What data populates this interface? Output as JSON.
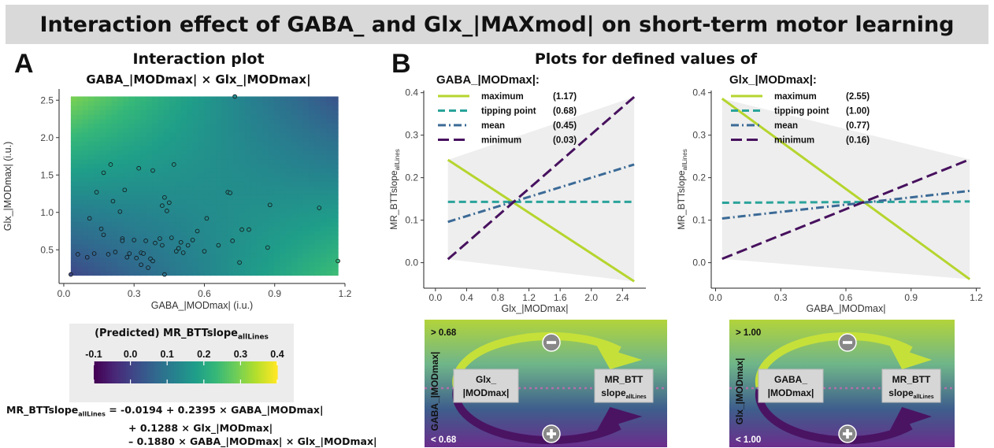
{
  "banner_title": "Interaction effect of GABA_ and Glx_|MAXmod| on short-term motor learning",
  "panel_a": {
    "letter": "A",
    "title": "Interaction plot",
    "subtitle": "GABA_|MODmax| × Glx_|MODmax|",
    "colorbar_title_main": "(Predicted) MR_BTTslope",
    "colorbar_title_sub": "allLines",
    "colorbar_ticks": [
      "-0.1",
      "0.0",
      "0.1",
      "0.2",
      "0.3",
      "0.4"
    ],
    "equation": {
      "lhs_main": "MR_BTTslope",
      "lhs_sub": "allLines",
      "line1": "= -0.0194 + 0.2395 × GABA_|MODmax|",
      "line2": "+ 0.1288 × Glx_|MODmax|",
      "line3": "– 0.1880 × GABA_|MODmax| × Glx_|MODmax|"
    }
  },
  "panel_b": {
    "letter": "B",
    "title": "Plots for defined values of",
    "ylabel_main": "MR_BTTslope",
    "ylabel_sub": "allLines",
    "labels": [
      "maximum",
      "tipping point",
      "mean",
      "minimum"
    ],
    "left_legend_title": "GABA_|MODmax|:",
    "left_legend_values": [
      "(1.17)",
      "(0.68)",
      "(0.45)",
      "(0.03)"
    ],
    "right_legend_title": "Glx_|MODmax|:",
    "right_legend_values": [
      "(2.55)",
      "(1.00)",
      "(0.77)",
      "(0.16)"
    ]
  },
  "diagrams": [
    {
      "axis_label": "GABA_|MODmax|",
      "top_label": "> 0.68",
      "bottom_label": "< 0.68",
      "left_box": [
        "Glx_",
        "|MODmax|"
      ],
      "right_box_main": "MR_BTT",
      "right_box_sub_main": "slope",
      "right_box_sub": "allLines"
    },
    {
      "axis_label": "Glx_|MODmax|",
      "top_label": "> 1.00",
      "bottom_label": "< 1.00",
      "left_box": [
        "GABA_",
        "|MODmax|"
      ],
      "right_box_main": "MR_BTT",
      "right_box_sub_main": "slope",
      "right_box_sub": "allLines"
    }
  ],
  "colors": {
    "maximum": "#b5d52e",
    "tipping_point": "#2aa39a",
    "mean": "#3b6a96",
    "minimum": "#47115e"
  },
  "chart_data": [
    {
      "type": "heatmap",
      "title": "Interaction plot",
      "subtitle": "GABA_|MODmax| × Glx_|MODmax|",
      "xlabel": "GABA_|MODmax| (i.u.)",
      "ylabel": "Glx_|MODmax| (i.u.)",
      "xlim": [
        -0.02,
        1.2
      ],
      "ylim": [
        0.05,
        2.65
      ],
      "xticks": [
        0.0,
        0.3,
        0.6,
        0.9,
        1.2
      ],
      "xtick_labels": [
        "0.0",
        "0.3",
        "0.6",
        "0.9",
        "1.2"
      ],
      "yticks": [
        0.5,
        1.0,
        1.5,
        2.0,
        2.5
      ],
      "ytick_labels": [
        "0.5",
        "1.0",
        "1.5",
        "2.0",
        "2.5"
      ],
      "fill_x": [
        0.03,
        1.17
      ],
      "fill_y": [
        0.16,
        2.55
      ],
      "colorscale": "viridis",
      "color_range": [
        -0.1,
        0.4
      ],
      "model": {
        "intercept": -0.0194,
        "gaba": 0.2395,
        "glx": 0.1288,
        "interaction": -0.188
      },
      "points": [
        {
          "x": 0.03,
          "y": 0.17
        },
        {
          "x": 0.06,
          "y": 0.44
        },
        {
          "x": 0.1,
          "y": 0.4
        },
        {
          "x": 0.11,
          "y": 0.92
        },
        {
          "x": 0.13,
          "y": 0.45
        },
        {
          "x": 0.14,
          "y": 1.27
        },
        {
          "x": 0.16,
          "y": 0.78
        },
        {
          "x": 0.17,
          "y": 0.7
        },
        {
          "x": 0.17,
          "y": 1.53
        },
        {
          "x": 0.19,
          "y": 0.44
        },
        {
          "x": 0.2,
          "y": 1.64
        },
        {
          "x": 0.21,
          "y": 1.15
        },
        {
          "x": 0.22,
          "y": 0.47
        },
        {
          "x": 0.24,
          "y": 1.01
        },
        {
          "x": 0.25,
          "y": 0.65
        },
        {
          "x": 0.25,
          "y": 0.62
        },
        {
          "x": 0.26,
          "y": 1.3
        },
        {
          "x": 0.27,
          "y": 0.4
        },
        {
          "x": 0.28,
          "y": 0.45
        },
        {
          "x": 0.3,
          "y": 0.63
        },
        {
          "x": 0.31,
          "y": 0.39
        },
        {
          "x": 0.32,
          "y": 1.59
        },
        {
          "x": 0.33,
          "y": 0.46
        },
        {
          "x": 0.33,
          "y": 0.3
        },
        {
          "x": 0.34,
          "y": 0.45
        },
        {
          "x": 0.35,
          "y": 0.62
        },
        {
          "x": 0.36,
          "y": 0.26
        },
        {
          "x": 0.37,
          "y": 0.38
        },
        {
          "x": 0.38,
          "y": 0.35
        },
        {
          "x": 0.38,
          "y": 1.56
        },
        {
          "x": 0.39,
          "y": 0.59
        },
        {
          "x": 0.41,
          "y": 0.65
        },
        {
          "x": 0.42,
          "y": 1.09
        },
        {
          "x": 0.42,
          "y": 0.56
        },
        {
          "x": 0.43,
          "y": 0.17
        },
        {
          "x": 0.43,
          "y": 1.2
        },
        {
          "x": 0.44,
          "y": 1.02
        },
        {
          "x": 0.45,
          "y": 1.13
        },
        {
          "x": 0.46,
          "y": 0.66
        },
        {
          "x": 0.47,
          "y": 1.64
        },
        {
          "x": 0.48,
          "y": 0.48
        },
        {
          "x": 0.49,
          "y": 0.52
        },
        {
          "x": 0.5,
          "y": 0.6
        },
        {
          "x": 0.51,
          "y": 0.46
        },
        {
          "x": 0.53,
          "y": 0.56
        },
        {
          "x": 0.55,
          "y": 0.63
        },
        {
          "x": 0.57,
          "y": 0.75
        },
        {
          "x": 0.6,
          "y": 0.48
        },
        {
          "x": 0.61,
          "y": 0.92
        },
        {
          "x": 0.66,
          "y": 0.56
        },
        {
          "x": 0.7,
          "y": 1.27
        },
        {
          "x": 0.71,
          "y": 1.26
        },
        {
          "x": 0.72,
          "y": 0.62
        },
        {
          "x": 0.73,
          "y": 2.55
        },
        {
          "x": 0.75,
          "y": 0.33
        },
        {
          "x": 0.76,
          "y": 0.77
        },
        {
          "x": 0.79,
          "y": 0.77
        },
        {
          "x": 0.87,
          "y": 0.53
        },
        {
          "x": 0.88,
          "y": 1.1
        },
        {
          "x": 1.09,
          "y": 1.06
        },
        {
          "x": 1.17,
          "y": 0.35
        }
      ]
    },
    {
      "type": "line",
      "legend_title": "GABA_|MODmax|:",
      "xlabel": "Glx_|MODmax|",
      "ylabel": "MR_BTTslope allLines",
      "xlim": [
        -0.15,
        2.7
      ],
      "ylim": [
        -0.06,
        0.405
      ],
      "xticks": [
        0.0,
        0.4,
        0.8,
        1.2,
        1.6,
        2.0,
        2.4
      ],
      "xtick_labels": [
        "0.0",
        "0.4",
        "0.8",
        "1.2",
        "1.6",
        "2.0",
        "2.4"
      ],
      "yticks": [
        0.0,
        0.1,
        0.2,
        0.3,
        0.4
      ],
      "ytick_labels": [
        "0.0",
        "0.1",
        "0.2",
        "0.3",
        "0.4"
      ],
      "x": [
        0.16,
        2.55
      ],
      "series": [
        {
          "name": "maximum",
          "values": [
            0.242,
            -0.044
          ]
        },
        {
          "name": "tipping point",
          "values": [
            0.143,
            0.143
          ]
        },
        {
          "name": "mean",
          "values": [
            0.096,
            0.231
          ]
        },
        {
          "name": "minimum",
          "values": [
            0.008,
            0.39
          ]
        }
      ]
    },
    {
      "type": "line",
      "legend_title": "Glx_|MODmax|:",
      "xlabel": "GABA_|MODmax|",
      "ylabel": "MR_BTTslope allLines",
      "xlim": [
        -0.02,
        1.22
      ],
      "ylim": [
        -0.06,
        0.405
      ],
      "xticks": [
        0.0,
        0.3,
        0.6,
        0.9,
        1.2
      ],
      "xtick_labels": [
        "0.0",
        "0.3",
        "0.6",
        "0.9",
        "1.2"
      ],
      "yticks": [
        0.0,
        0.1,
        0.2,
        0.3,
        0.4
      ],
      "ytick_labels": [
        "0.0",
        "0.1",
        "0.2",
        "0.3",
        "0.4"
      ],
      "x": [
        0.03,
        1.17
      ],
      "series": [
        {
          "name": "maximum",
          "values": [
            0.386,
            -0.039
          ]
        },
        {
          "name": "tipping point",
          "values": [
            0.141,
            0.144
          ]
        },
        {
          "name": "mean",
          "values": [
            0.104,
            0.169
          ]
        },
        {
          "name": "minimum",
          "values": [
            0.009,
            0.243
          ]
        }
      ]
    }
  ]
}
